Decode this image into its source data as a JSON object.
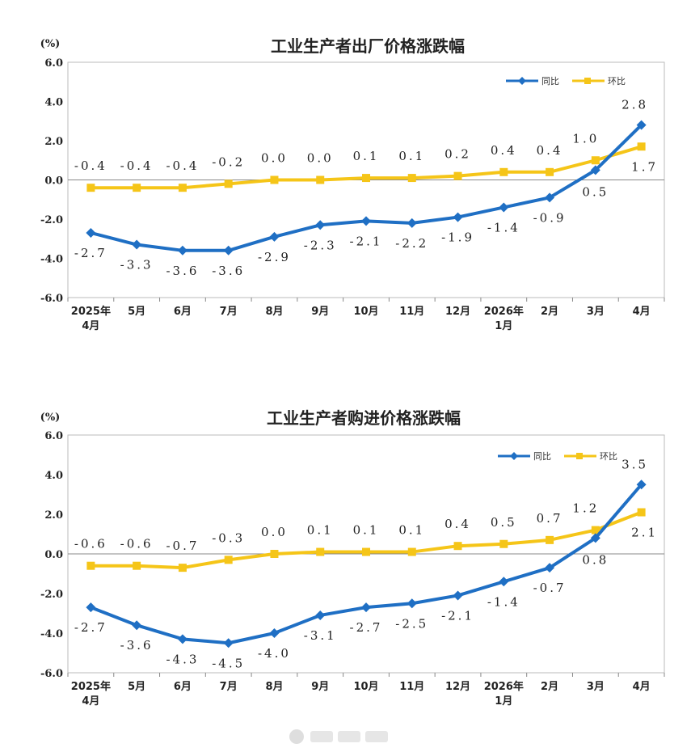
{
  "colors": {
    "yoy": "#1f6fc4",
    "mom": "#f5c518",
    "axis": "#888888",
    "frame": "#bbbbbb"
  },
  "chart_data": [
    {
      "type": "line",
      "title": "工业生产者出厂价格涨跌幅",
      "ylabel": "(%)",
      "ylim": [
        -6.0,
        6.0
      ],
      "yticks": [
        "6.0",
        "4.0",
        "2.0",
        "0.0",
        "-2.0",
        "-4.0",
        "-6.0"
      ],
      "categories": [
        "2025年\n4月",
        "5月",
        "6月",
        "7月",
        "8月",
        "9月",
        "10月",
        "11月",
        "12月",
        "2026年\n1月",
        "2月",
        "3月",
        "4月"
      ],
      "legend_position": "top-right",
      "series": [
        {
          "name": "同比",
          "values": [
            -2.7,
            -3.3,
            -3.6,
            -3.6,
            -2.9,
            -2.3,
            -2.1,
            -2.2,
            -1.9,
            -1.4,
            -0.9,
            0.5,
            2.8
          ],
          "labels": [
            "-2.7",
            "-3.3",
            "-3.6",
            "-3.6",
            "-2.9",
            "-2.3",
            "-2.1",
            "-2.2",
            "-1.9",
            "-1.4",
            "-0.9",
            "0.5",
            "2.8"
          ]
        },
        {
          "name": "环比",
          "values": [
            -0.4,
            -0.4,
            -0.4,
            -0.2,
            0.0,
            0.0,
            0.1,
            0.1,
            0.2,
            0.4,
            0.4,
            1.0,
            1.7
          ],
          "labels": [
            "-0.4",
            "-0.4",
            "-0.4",
            "-0.2",
            "0.0",
            "0.0",
            "0.1",
            "0.1",
            "0.2",
            "0.4",
            "0.4",
            "1.0",
            "1.7"
          ]
        }
      ]
    },
    {
      "type": "line",
      "title": "工业生产者购进价格涨跌幅",
      "ylabel": "(%)",
      "ylim": [
        -6.0,
        6.0
      ],
      "yticks": [
        "6.0",
        "4.0",
        "2.0",
        "0.0",
        "-2.0",
        "-4.0",
        "-6.0"
      ],
      "categories": [
        "2025年\n4月",
        "5月",
        "6月",
        "7月",
        "8月",
        "9月",
        "10月",
        "11月",
        "12月",
        "2026年\n1月",
        "2月",
        "3月",
        "4月"
      ],
      "legend_position": "top-right",
      "series": [
        {
          "name": "同比",
          "values": [
            -2.7,
            -3.6,
            -4.3,
            -4.5,
            -4.0,
            -3.1,
            -2.7,
            -2.5,
            -2.1,
            -1.4,
            -0.7,
            0.8,
            3.5
          ],
          "labels": [
            "-2.7",
            "-3.6",
            "-4.3",
            "-4.5",
            "-4.0",
            "-3.1",
            "-2.7",
            "-2.5",
            "-2.1",
            "-1.4",
            "-0.7",
            "0.8",
            "3.5"
          ]
        },
        {
          "name": "环比",
          "values": [
            -0.6,
            -0.6,
            -0.7,
            -0.3,
            0.0,
            0.1,
            0.1,
            0.1,
            0.4,
            0.5,
            0.7,
            1.2,
            2.1
          ],
          "labels": [
            "-0.6",
            "-0.6",
            "-0.7",
            "-0.3",
            "0.0",
            "0.1",
            "0.1",
            "0.1",
            "0.4",
            "0.5",
            "0.7",
            "1.2",
            "2.1"
          ]
        }
      ]
    }
  ]
}
